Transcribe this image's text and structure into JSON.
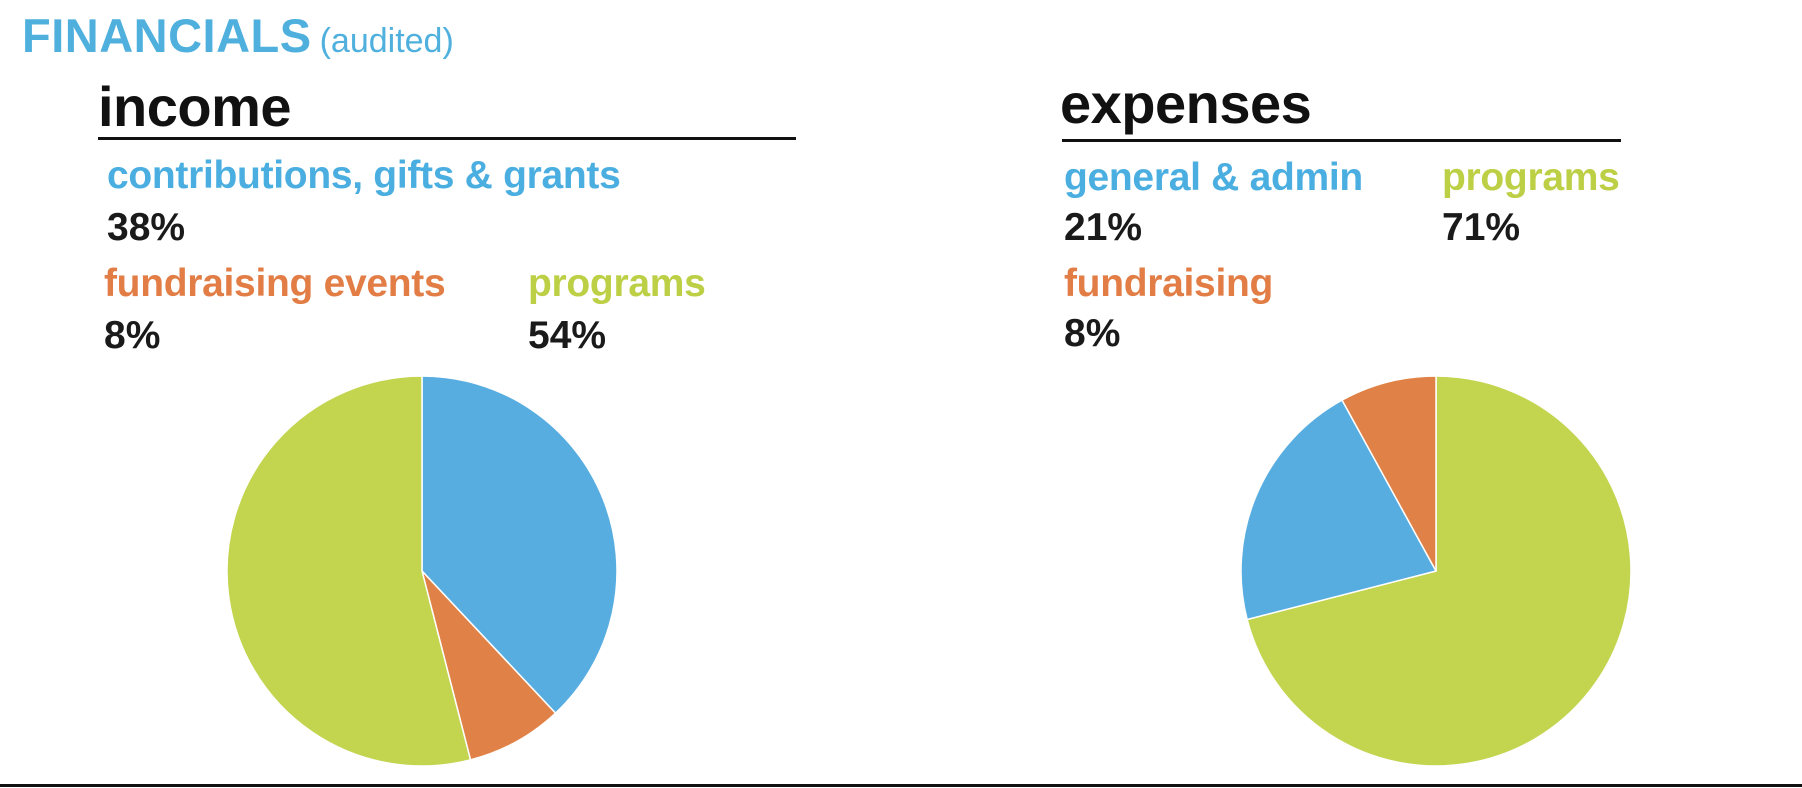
{
  "header": {
    "title": "FINANCIALS",
    "subtitle": "(audited)"
  },
  "colors": {
    "blue": "#58ade0",
    "orange": "#e08247",
    "green": "#c3d44f",
    "text": "#1a1a1a",
    "heading": "#4fb0de"
  },
  "chart_data": [
    {
      "type": "pie",
      "title": "income",
      "slices": [
        {
          "label": "contributions, gifts & grants",
          "value": 38,
          "display": "38%",
          "color": "#58ade0"
        },
        {
          "label": "fundraising events",
          "value": 8,
          "display": "8%",
          "color": "#e08247"
        },
        {
          "label": "programs",
          "value": 54,
          "display": "54%",
          "color": "#c3d44f"
        }
      ]
    },
    {
      "type": "pie",
      "title": "expenses",
      "slices": [
        {
          "label": "programs",
          "value": 71,
          "display": "71%",
          "color": "#c3d44f"
        },
        {
          "label": "general & admin",
          "value": 21,
          "display": "21%",
          "color": "#58ade0"
        },
        {
          "label": "fundraising",
          "value": 8,
          "display": "8%",
          "color": "#e08247"
        }
      ]
    }
  ]
}
